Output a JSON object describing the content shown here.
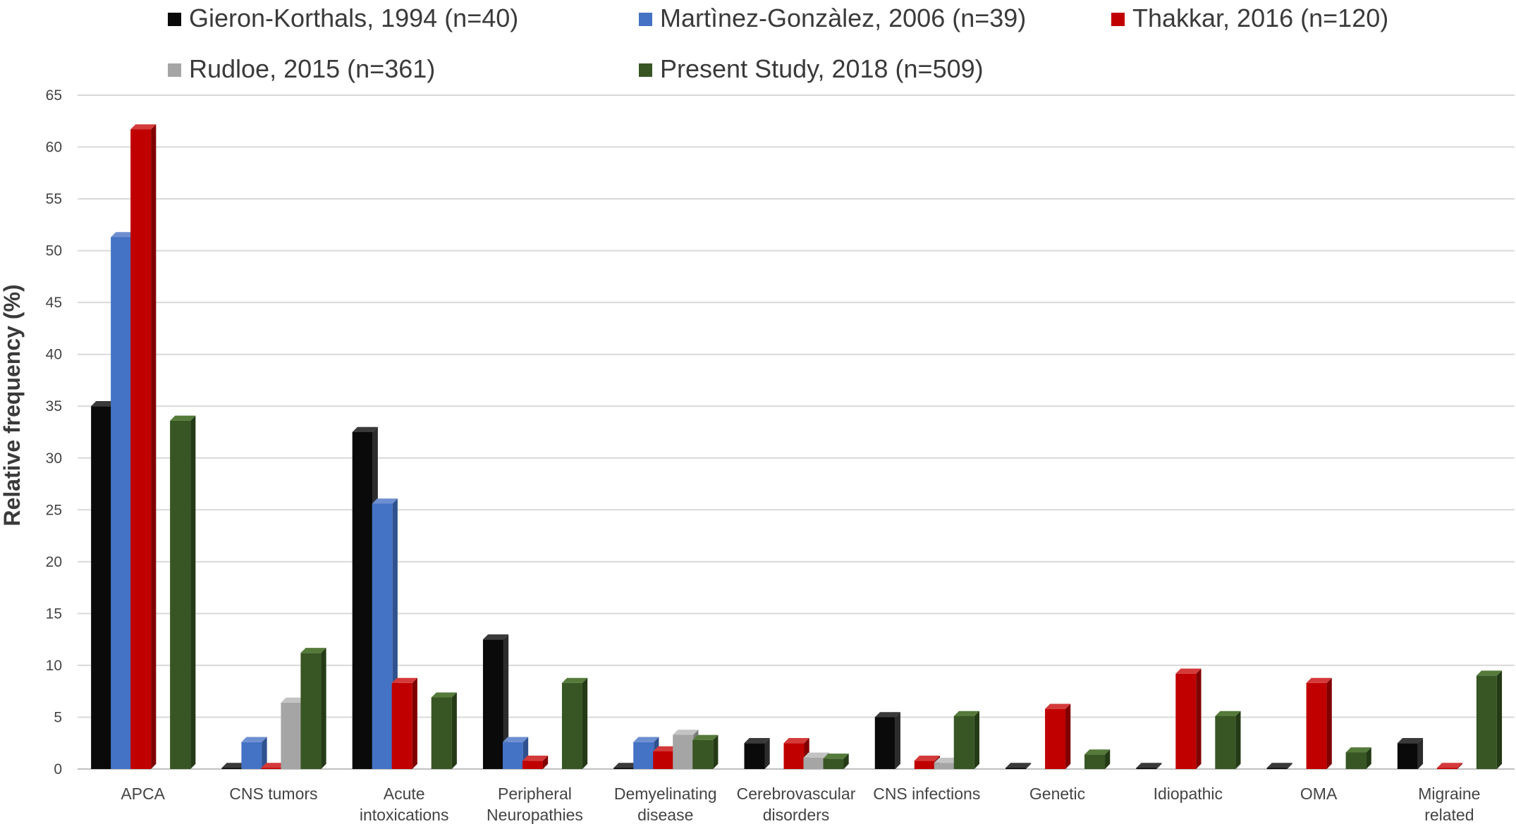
{
  "chart_data": {
    "type": "bar",
    "ylabel": "Relative frequency (%)",
    "xlabel": "",
    "ylim": [
      0,
      65
    ],
    "yticks": [
      "0",
      "5",
      "10",
      "15",
      "20",
      "25",
      "30",
      "35",
      "40",
      "45",
      "50",
      "55",
      "60",
      "65"
    ],
    "grid": true,
    "legend_position": "top",
    "categories": [
      [
        "APCA"
      ],
      [
        "CNS tumors"
      ],
      [
        "Acute",
        "intoxications"
      ],
      [
        "Peripheral",
        "Neuropathies"
      ],
      [
        "Demyelinating",
        "disease"
      ],
      [
        "Cerebrovascular",
        "disorders"
      ],
      [
        "CNS infections"
      ],
      [
        "Genetic"
      ],
      [
        "Idiopathic"
      ],
      [
        "OMA"
      ],
      [
        "Migraine",
        "related"
      ]
    ],
    "series": [
      {
        "name": "Gieron-Korthals, 1994 (n=40)",
        "color": "#0a0a0a",
        "side": "#2c2c2c",
        "top": "#3a3a3a",
        "values": [
          35,
          0,
          32.5,
          12.5,
          0,
          2.5,
          5,
          0,
          0,
          0,
          2.5
        ]
      },
      {
        "name": "Martìnez-Gonzàlez, 2006 (n=39)",
        "color": "#4472c4",
        "side": "#2f528f",
        "top": "#6d8fd0",
        "values": [
          51.3,
          2.6,
          25.6,
          2.6,
          2.6,
          null,
          null,
          null,
          null,
          null,
          null
        ]
      },
      {
        "name": "Thakkar, 2016 (n=120)",
        "color": "#c00000",
        "side": "#800000",
        "top": "#d43a3a",
        "values": [
          61.7,
          0,
          8.3,
          0.8,
          1.7,
          2.5,
          0.8,
          5.8,
          9.2,
          8.3,
          0
        ]
      },
      {
        "name": "Rudloe, 2015 (n=361)",
        "color": "#a5a5a5",
        "side": "#7b7b7b",
        "top": "#c3c3c3",
        "values": [
          null,
          6.4,
          null,
          null,
          3.3,
          1.1,
          0.6,
          null,
          null,
          null,
          null
        ]
      },
      {
        "name": "Present Study, 2018 (n=509)",
        "color": "#375623",
        "side": "#243a16",
        "top": "#557a3a",
        "values": [
          33.6,
          11.2,
          6.9,
          8.3,
          2.8,
          1.0,
          5.1,
          1.4,
          5.1,
          1.6,
          9.0
        ]
      }
    ]
  }
}
